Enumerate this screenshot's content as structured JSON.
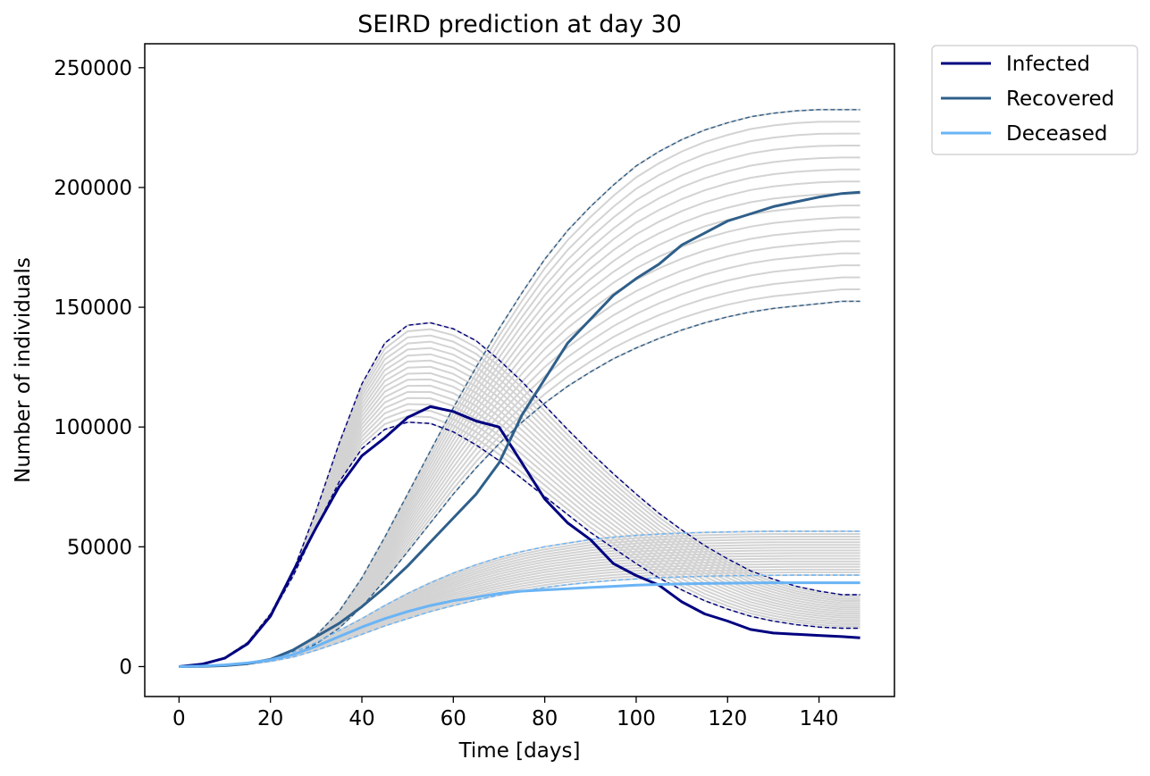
{
  "chart_data": {
    "type": "line",
    "title": "SEIRD prediction at day 30",
    "xlabel": "Time [days]",
    "ylabel": "Number of individuals",
    "xlim": [
      -7.5,
      156.5
    ],
    "ylim": [
      -12500,
      260000
    ],
    "xticks": [
      0,
      20,
      40,
      60,
      80,
      100,
      120,
      140
    ],
    "yticks": [
      0,
      50000,
      100000,
      150000,
      200000,
      250000
    ],
    "xtick_labels": [
      "0",
      "20",
      "40",
      "60",
      "80",
      "100",
      "120",
      "140"
    ],
    "ytick_labels": [
      "0",
      "50000",
      "100000",
      "150000",
      "200000",
      "250000"
    ],
    "grid": false,
    "legend": {
      "placement": "outside-top-right",
      "entries": [
        "Infected",
        "Recovered",
        "Deceased"
      ]
    },
    "colors": {
      "infected": "#000080",
      "recovered": "#2f5f8a",
      "deceased": "#6ab4f5",
      "ensemble": "#d3d3d3"
    },
    "series": [
      {
        "name": "Infected",
        "style": "solid",
        "x": [
          0,
          5,
          10,
          15,
          20,
          25,
          30,
          35,
          40,
          45,
          50,
          55,
          60,
          65,
          70,
          75,
          80,
          85,
          90,
          95,
          100,
          105,
          110,
          115,
          120,
          125,
          130,
          135,
          140,
          145,
          149
        ],
        "y": [
          0,
          1000,
          3500,
          9500,
          21000,
          40000,
          58000,
          75000,
          88000,
          95500,
          104000,
          108500,
          106500,
          102500,
          100000,
          85000,
          70000,
          60000,
          53000,
          43000,
          38000,
          34000,
          27000,
          22000,
          19000,
          15500,
          14000,
          13500,
          13000,
          12500,
          12000
        ]
      },
      {
        "name": "Recovered",
        "style": "solid",
        "x": [
          0,
          5,
          10,
          15,
          20,
          25,
          30,
          35,
          40,
          45,
          50,
          55,
          60,
          65,
          70,
          75,
          80,
          85,
          90,
          95,
          100,
          105,
          110,
          115,
          120,
          125,
          130,
          135,
          140,
          145,
          149
        ],
        "y": [
          0,
          100,
          400,
          1200,
          3000,
          7000,
          12500,
          18000,
          25000,
          33000,
          42000,
          52000,
          62000,
          72000,
          85000,
          105000,
          120000,
          135000,
          145000,
          155000,
          162000,
          168000,
          176000,
          181000,
          186000,
          189000,
          192000,
          194000,
          196000,
          197500,
          198000
        ]
      },
      {
        "name": "Deceased",
        "style": "solid",
        "x": [
          0,
          5,
          10,
          15,
          20,
          25,
          30,
          35,
          40,
          45,
          50,
          55,
          60,
          65,
          70,
          75,
          80,
          85,
          90,
          95,
          100,
          105,
          110,
          115,
          120,
          125,
          130,
          135,
          140,
          145,
          149
        ],
        "y": [
          0,
          200,
          700,
          1500,
          2800,
          5000,
          8500,
          12500,
          16500,
          20000,
          23000,
          25500,
          27500,
          29000,
          30500,
          31500,
          32000,
          32500,
          33000,
          33500,
          34000,
          34300,
          34500,
          34700,
          34800,
          34900,
          35000,
          35000,
          35000,
          35000,
          35000
        ]
      }
    ],
    "bounds": {
      "x": [
        0,
        5,
        10,
        15,
        20,
        25,
        30,
        35,
        40,
        45,
        50,
        55,
        60,
        65,
        70,
        75,
        80,
        85,
        90,
        95,
        100,
        105,
        110,
        115,
        120,
        125,
        130,
        135,
        140,
        145,
        149
      ],
      "infected_upper": [
        0,
        700,
        3800,
        10000,
        22000,
        40000,
        65000,
        93000,
        118000,
        135000,
        142500,
        143500,
        141000,
        136000,
        128000,
        119000,
        109000,
        99000,
        89500,
        80500,
        72000,
        64000,
        57000,
        50500,
        45000,
        40000,
        36500,
        33500,
        31500,
        30000,
        30000
      ],
      "infected_lower": [
        0,
        700,
        3500,
        9500,
        21000,
        38000,
        58000,
        77000,
        91000,
        99000,
        102000,
        101500,
        98000,
        92500,
        86000,
        78500,
        71000,
        63500,
        56000,
        49500,
        43000,
        37000,
        32000,
        27500,
        24000,
        21000,
        19000,
        17500,
        16500,
        16000,
        16000
      ],
      "recovered_upper": [
        0,
        100,
        400,
        1300,
        3000,
        6500,
        13000,
        23000,
        37000,
        54000,
        72000,
        90000,
        108000,
        125000,
        141000,
        156000,
        170000,
        182000,
        192000,
        201000,
        209000,
        215000,
        220000,
        224000,
        227000,
        229500,
        231000,
        232000,
        232500,
        232500,
        232500
      ],
      "recovered_lower": [
        0,
        100,
        300,
        1000,
        2300,
        5000,
        9500,
        16000,
        25000,
        36000,
        48000,
        60000,
        72000,
        83000,
        93000,
        102000,
        110000,
        117000,
        123000,
        128500,
        133000,
        137000,
        140500,
        143500,
        146000,
        148000,
        149500,
        150500,
        151500,
        152500,
        152500
      ],
      "deceased_upper": [
        0,
        150,
        600,
        1500,
        3200,
        6000,
        10000,
        15000,
        20000,
        25500,
        30500,
        35000,
        39000,
        42500,
        45500,
        48000,
        50000,
        51500,
        53000,
        54000,
        54800,
        55300,
        55700,
        56000,
        56200,
        56400,
        56500,
        56500,
        56500,
        56500,
        56500
      ],
      "deceased_lower": [
        0,
        100,
        400,
        1000,
        2200,
        4000,
        6800,
        10000,
        13500,
        17000,
        20000,
        23000,
        25500,
        27800,
        29800,
        31500,
        33000,
        34200,
        35200,
        36000,
        36600,
        37100,
        37400,
        37700,
        37900,
        38000,
        38100,
        38200,
        38200,
        38200,
        38200
      ]
    }
  }
}
